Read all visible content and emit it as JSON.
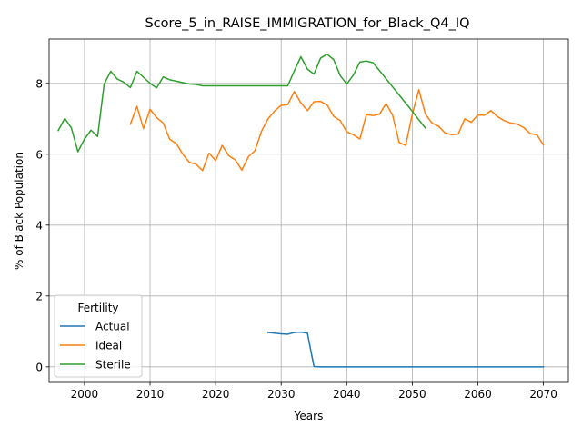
{
  "chart_data": {
    "type": "line",
    "title": "Score_5_in_RAISE_IMMIGRATION_for_Black_Q4_IQ",
    "xlabel": "Years",
    "ylabel": "% of Black Population",
    "xlim": [
      1994.6,
      2073.8
    ],
    "ylim": [
      -0.44,
      9.25
    ],
    "xticks": [
      2000,
      2010,
      2020,
      2030,
      2040,
      2050,
      2060,
      2070
    ],
    "yticks": [
      0,
      2,
      4,
      6,
      8
    ],
    "grid": true,
    "legend": {
      "title": "Fertility",
      "placement": "lower-left"
    },
    "series": [
      {
        "name": "Actual",
        "color": "#1f77b4",
        "x": [
          2028,
          2029,
          2030,
          2031,
          2032,
          2033,
          2034,
          2035,
          2036,
          2037,
          2038,
          2039,
          2040,
          2041,
          2042,
          2043,
          2044,
          2045,
          2046,
          2047,
          2048,
          2049,
          2050,
          2051,
          2052,
          2053,
          2054,
          2055,
          2056,
          2057,
          2058,
          2059,
          2060,
          2061,
          2062,
          2063,
          2064,
          2065,
          2066,
          2067,
          2068,
          2069,
          2070
        ],
        "y": [
          0.97,
          0.95,
          0.93,
          0.92,
          0.97,
          0.98,
          0.95,
          0.01,
          0,
          0,
          0,
          0,
          0,
          0,
          0,
          0,
          0,
          0,
          0,
          0,
          0,
          0,
          0,
          0,
          0,
          0,
          0,
          0,
          0,
          0,
          0,
          0,
          0,
          0,
          0,
          0,
          0,
          0,
          0,
          0,
          0,
          0,
          0
        ]
      },
      {
        "name": "Ideal",
        "color": "#ff7f0e",
        "x": [
          2007,
          2008,
          2009,
          2010,
          2011,
          2012,
          2013,
          2014,
          2015,
          2016,
          2017,
          2018,
          2019,
          2020,
          2021,
          2022,
          2023,
          2024,
          2025,
          2026,
          2027,
          2028,
          2029,
          2030,
          2031,
          2032,
          2033,
          2034,
          2035,
          2036,
          2037,
          2038,
          2039,
          2040,
          2041,
          2042,
          2043,
          2044,
          2045,
          2046,
          2047,
          2048,
          2049,
          2050,
          2051,
          2052,
          2053,
          2054,
          2055,
          2056,
          2057,
          2058,
          2059,
          2060,
          2061,
          2062,
          2063,
          2064,
          2065,
          2066,
          2067,
          2068,
          2069,
          2070
        ],
        "y": [
          6.85,
          7.35,
          6.72,
          7.27,
          7.03,
          6.88,
          6.42,
          6.3,
          6.0,
          5.77,
          5.72,
          5.54,
          6.03,
          5.82,
          6.25,
          5.96,
          5.84,
          5.55,
          5.93,
          6.1,
          6.65,
          7.0,
          7.22,
          7.38,
          7.4,
          7.77,
          7.45,
          7.23,
          7.48,
          7.49,
          7.39,
          7.07,
          6.95,
          6.63,
          6.55,
          6.43,
          7.12,
          7.09,
          7.13,
          7.43,
          7.1,
          6.33,
          6.25,
          7.13,
          7.82,
          7.13,
          6.88,
          6.79,
          6.6,
          6.55,
          6.57,
          7.0,
          6.9,
          7.11,
          7.1,
          7.23,
          7.06,
          6.95,
          6.88,
          6.85,
          6.75,
          6.58,
          6.55,
          6.26
        ]
      },
      {
        "name": "Sterile",
        "color": "#2ca02c",
        "x": [
          1996,
          1997,
          1998,
          1999,
          2000,
          2001,
          2002,
          2003,
          2004,
          2005,
          2006,
          2007,
          2008,
          2009,
          2010,
          2011,
          2012,
          2013,
          2014,
          2015,
          2016,
          2017,
          2018,
          2019,
          2020,
          2021,
          2022,
          2023,
          2024,
          2025,
          2026,
          2027,
          2028,
          2029,
          2030,
          2031,
          2032,
          2033,
          2034,
          2035,
          2036,
          2037,
          2038,
          2039,
          2040,
          2041,
          2042,
          2043,
          2044,
          2045,
          2046,
          2047,
          2048,
          2049,
          2050,
          2051,
          2052
        ],
        "y": [
          6.67,
          7.01,
          6.74,
          6.07,
          6.43,
          6.68,
          6.5,
          7.98,
          8.34,
          8.12,
          8.03,
          7.88,
          8.34,
          8.17,
          8.0,
          7.87,
          8.18,
          8.1,
          8.06,
          8.02,
          7.98,
          7.97,
          7.93,
          7.93,
          7.93,
          7.93,
          7.93,
          7.93,
          7.93,
          7.93,
          7.93,
          7.93,
          7.93,
          7.93,
          7.93,
          7.93,
          8.35,
          8.75,
          8.4,
          8.26,
          8.71,
          8.82,
          8.67,
          8.22,
          7.98,
          8.23,
          8.6,
          8.63,
          8.58,
          8.36,
          8.13,
          7.9,
          7.67,
          7.44,
          7.21,
          6.97,
          6.74
        ]
      }
    ]
  }
}
